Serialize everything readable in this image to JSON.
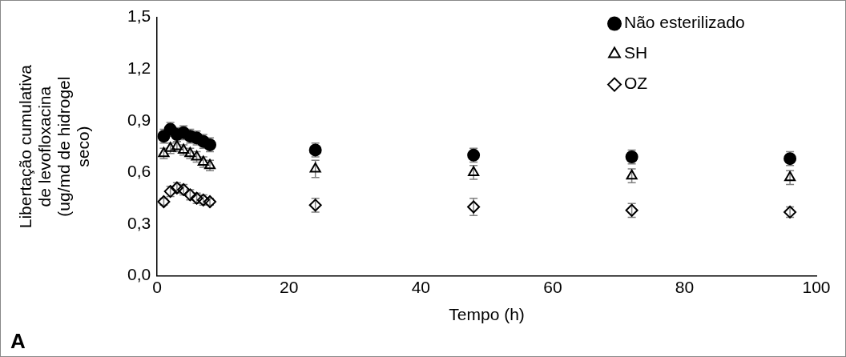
{
  "chart_data": {
    "type": "scatter",
    "xlabel": "Tempo (h)",
    "ylabel": "Libertação cumulativa de levofloxacina (ug/md de hidrogel seco)",
    "xlim": [
      0,
      100
    ],
    "xticks": [
      0,
      20,
      40,
      60,
      80,
      100
    ],
    "ylim": [
      0,
      1.5
    ],
    "yticks": [
      {
        "value": 0,
        "label": "0,0"
      },
      {
        "value": 0.3,
        "label": "0,3"
      },
      {
        "value": 0.6,
        "label": "0,6"
      },
      {
        "value": 0.9,
        "label": "0,9"
      },
      {
        "value": 1.2,
        "label": "1,2"
      },
      {
        "value": 1.5,
        "label": "1,5"
      }
    ],
    "grid": false,
    "legend": "top right",
    "annotations": [
      "A"
    ],
    "series": [
      {
        "name": "Não esterilizado",
        "color": "#000000",
        "marker": "circle",
        "x": [
          1,
          2,
          3,
          4,
          5,
          6,
          7,
          8,
          24,
          48,
          72,
          96
        ],
        "values": [
          0.81,
          0.85,
          0.82,
          0.83,
          0.81,
          0.8,
          0.78,
          0.76,
          0.73,
          0.7,
          0.69,
          0.68
        ],
        "errors": [
          0.04,
          0.04,
          0.04,
          0.04,
          0.04,
          0.04,
          0.04,
          0.04,
          0.04,
          0.04,
          0.04,
          0.04
        ]
      },
      {
        "name": "SH",
        "color": "#000000",
        "marker": "triangle",
        "x": [
          1,
          2,
          3,
          4,
          5,
          6,
          7,
          8,
          24,
          48,
          72,
          96
        ],
        "values": [
          0.71,
          0.74,
          0.75,
          0.73,
          0.71,
          0.69,
          0.66,
          0.64,
          0.62,
          0.6,
          0.58,
          0.57
        ],
        "errors": [
          0.03,
          0.03,
          0.03,
          0.03,
          0.03,
          0.03,
          0.03,
          0.03,
          0.05,
          0.04,
          0.04,
          0.04
        ]
      },
      {
        "name": "OZ",
        "color": "#000000",
        "marker": "diamond",
        "x": [
          1,
          2,
          3,
          4,
          5,
          6,
          7,
          8,
          24,
          48,
          72,
          96
        ],
        "values": [
          0.43,
          0.49,
          0.51,
          0.5,
          0.47,
          0.45,
          0.44,
          0.43,
          0.41,
          0.4,
          0.38,
          0.37
        ],
        "errors": [
          0.02,
          0.03,
          0.03,
          0.03,
          0.03,
          0.03,
          0.03,
          0.02,
          0.04,
          0.05,
          0.04,
          0.03
        ]
      }
    ]
  }
}
